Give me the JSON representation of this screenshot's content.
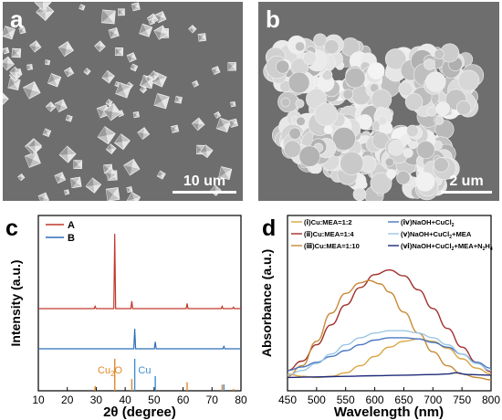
{
  "panels": {
    "a": {
      "letter": "a",
      "scale_label": "10 um"
    },
    "b": {
      "letter": "b",
      "scale_label": "2 um"
    },
    "c": {
      "letter": "c"
    },
    "d": {
      "letter": "d"
    }
  },
  "colors": {
    "sem_background": "#6e6e6e",
    "particle_light": "#e6e6e6",
    "particle_mid": "#c2c2c2",
    "pattern_A": "#c0392b",
    "pattern_B": "#2e6fb8",
    "ref_Cu2O": "#e08a2a",
    "ref_Cu": "#3b8fd4"
  },
  "chart_data": [
    {
      "panel": "c",
      "type": "line",
      "xlabel": "2θ (degree)",
      "ylabel": "Intensity (a.u.)",
      "xlim": [
        10,
        80
      ],
      "xticks": [
        10,
        20,
        30,
        40,
        50,
        60,
        70,
        80
      ],
      "y_ticks_shown": false,
      "legend_position": "top-left",
      "series": [
        {
          "name": "A",
          "color": "#c0392b",
          "peaks": [
            [
              29.6,
              0.03
            ],
            [
              36.4,
              1.0
            ],
            [
              42.3,
              0.1
            ],
            [
              61.4,
              0.07
            ],
            [
              73.5,
              0.03
            ],
            [
              77.4,
              0.02
            ]
          ]
        },
        {
          "name": "B",
          "color": "#2e6fb8",
          "peaks": [
            [
              43.3,
              1.0
            ],
            [
              50.4,
              0.35
            ],
            [
              74.1,
              0.12
            ]
          ]
        }
      ],
      "reference_patterns": [
        {
          "label": "Cu2O",
          "color": "#e08a2a",
          "lines": [
            [
              29.6,
              0.15
            ],
            [
              36.4,
              1.0
            ],
            [
              42.3,
              0.37
            ],
            [
              61.4,
              0.27
            ],
            [
              73.5,
              0.19
            ],
            [
              77.4,
              0.06
            ]
          ]
        },
        {
          "label": "Cu",
          "color": "#3b8fd4",
          "lines": [
            [
              43.3,
              1.0
            ],
            [
              50.4,
              0.46
            ],
            [
              74.1,
              0.2
            ]
          ]
        }
      ]
    },
    {
      "panel": "d",
      "type": "line",
      "xlabel": "Wavelength (nm)",
      "ylabel": "Absorbance (a.u.)",
      "xlim": [
        450,
        800
      ],
      "xticks": [
        450,
        500,
        550,
        600,
        650,
        700,
        750,
        800
      ],
      "y_ticks_shown": false,
      "legend_position": "top",
      "series": [
        {
          "name": "(ⅰ)Cu:MEA=1:2",
          "color": "#d9a441",
          "points": [
            [
              450,
              0.05
            ],
            [
              475,
              0.03
            ],
            [
              500,
              0.02
            ],
            [
              525,
              0.03
            ],
            [
              550,
              0.06
            ],
            [
              575,
              0.12
            ],
            [
              600,
              0.2
            ],
            [
              625,
              0.28
            ],
            [
              650,
              0.33
            ],
            [
              675,
              0.35
            ],
            [
              700,
              0.33
            ],
            [
              725,
              0.27
            ],
            [
              750,
              0.18
            ],
            [
              775,
              0.1
            ],
            [
              800,
              0.05
            ]
          ]
        },
        {
          "name": "(ⅱ)Cu:MEA=1:4",
          "color": "#a0302c",
          "points": [
            [
              450,
              0.08
            ],
            [
              475,
              0.16
            ],
            [
              500,
              0.3
            ],
            [
              525,
              0.47
            ],
            [
              550,
              0.64
            ],
            [
              575,
              0.79
            ],
            [
              600,
              0.9
            ],
            [
              625,
              0.94
            ],
            [
              650,
              0.89
            ],
            [
              675,
              0.77
            ],
            [
              700,
              0.61
            ],
            [
              725,
              0.44
            ],
            [
              750,
              0.28
            ],
            [
              775,
              0.15
            ],
            [
              800,
              0.07
            ]
          ]
        },
        {
          "name": "(ⅲ)Cu:MEA=1:10",
          "color": "#c88a38",
          "points": [
            [
              450,
              0.03
            ],
            [
              475,
              0.12
            ],
            [
              500,
              0.33
            ],
            [
              525,
              0.57
            ],
            [
              550,
              0.74
            ],
            [
              575,
              0.83
            ],
            [
              590,
              0.85
            ],
            [
              610,
              0.82
            ],
            [
              625,
              0.75
            ],
            [
              650,
              0.58
            ],
            [
              675,
              0.4
            ],
            [
              700,
              0.24
            ],
            [
              725,
              0.12
            ],
            [
              750,
              0.05
            ],
            [
              775,
              0.02
            ],
            [
              800,
              0.0
            ]
          ]
        },
        {
          "name": "(ⅳ)NaOH+CuCl2",
          "color": "#4a78c2",
          "points": [
            [
              450,
              0.08
            ],
            [
              475,
              0.11
            ],
            [
              500,
              0.15
            ],
            [
              525,
              0.2
            ],
            [
              550,
              0.25
            ],
            [
              575,
              0.3
            ],
            [
              600,
              0.34
            ],
            [
              625,
              0.36
            ],
            [
              650,
              0.36
            ],
            [
              675,
              0.35
            ],
            [
              700,
              0.32
            ],
            [
              725,
              0.28
            ],
            [
              750,
              0.22
            ],
            [
              775,
              0.15
            ],
            [
              800,
              0.1
            ]
          ]
        },
        {
          "name": "(ⅴ)NaOH+CuCl2+MEA",
          "color": "#9cc7e3",
          "points": [
            [
              450,
              0.04
            ],
            [
              475,
              0.08
            ],
            [
              500,
              0.14
            ],
            [
              525,
              0.22
            ],
            [
              550,
              0.3
            ],
            [
              575,
              0.36
            ],
            [
              600,
              0.4
            ],
            [
              625,
              0.42
            ],
            [
              650,
              0.42
            ],
            [
              675,
              0.4
            ],
            [
              700,
              0.36
            ],
            [
              725,
              0.3
            ],
            [
              750,
              0.22
            ],
            [
              775,
              0.14
            ],
            [
              800,
              0.08
            ]
          ]
        },
        {
          "name": "(ⅵ)NaOH+CuCl2+MEA+N2H4",
          "color": "#1e2a7a",
          "points": [
            [
              450,
              0.02
            ],
            [
              500,
              0.025
            ],
            [
              550,
              0.03
            ],
            [
              600,
              0.035
            ],
            [
              650,
              0.04
            ],
            [
              700,
              0.045
            ],
            [
              725,
              0.05
            ],
            [
              740,
              0.06
            ],
            [
              760,
              0.045
            ],
            [
              800,
              0.04
            ]
          ]
        }
      ]
    }
  ]
}
